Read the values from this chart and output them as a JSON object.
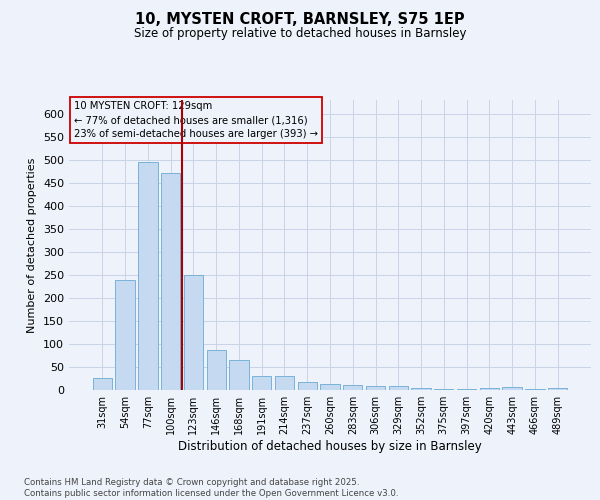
{
  "title": "10, MYSTEN CROFT, BARNSLEY, S75 1EP",
  "subtitle": "Size of property relative to detached houses in Barnsley",
  "xlabel": "Distribution of detached houses by size in Barnsley",
  "ylabel": "Number of detached properties",
  "bar_labels": [
    "31sqm",
    "54sqm",
    "77sqm",
    "100sqm",
    "123sqm",
    "146sqm",
    "168sqm",
    "191sqm",
    "214sqm",
    "237sqm",
    "260sqm",
    "283sqm",
    "306sqm",
    "329sqm",
    "352sqm",
    "375sqm",
    "397sqm",
    "420sqm",
    "443sqm",
    "466sqm",
    "489sqm"
  ],
  "bar_values": [
    25,
    238,
    495,
    472,
    250,
    87,
    65,
    30,
    30,
    18,
    14,
    11,
    9,
    8,
    5,
    3,
    3,
    5,
    6,
    3,
    4
  ],
  "bar_color": "#c5d9f0",
  "bar_edge_color": "#6aaad4",
  "grid_color": "#c8d4e8",
  "background_color": "#eef2fb",
  "vline_x_index": 4,
  "vline_color": "#aa0000",
  "annotation_line1": "10 MYSTEN CROFT: 129sqm",
  "annotation_line2": "← 77% of detached houses are smaller (1,316)",
  "annotation_line3": "23% of semi-detached houses are larger (393) →",
  "annotation_box_color": "#cc0000",
  "footnote_line1": "Contains HM Land Registry data © Crown copyright and database right 2025.",
  "footnote_line2": "Contains public sector information licensed under the Open Government Licence v3.0.",
  "ylim": [
    0,
    630
  ],
  "yticks": [
    0,
    50,
    100,
    150,
    200,
    250,
    300,
    350,
    400,
    450,
    500,
    550,
    600
  ]
}
